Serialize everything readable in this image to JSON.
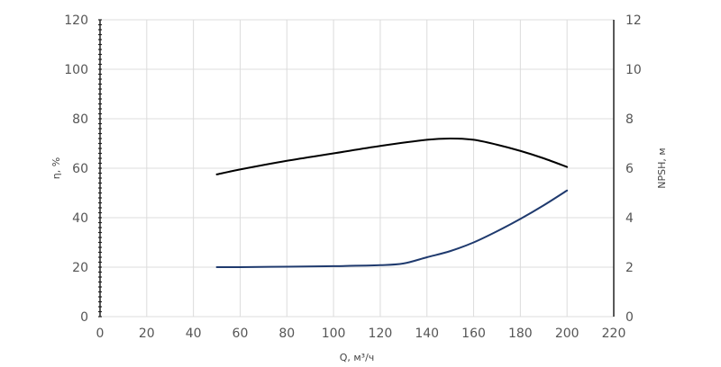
{
  "chart_data": {
    "type": "line",
    "xlabel": "Q, м³/ч",
    "ylabel_left": "η, %",
    "ylabel_right": "NPSH, м",
    "xlim": [
      0,
      220
    ],
    "ylim_left": [
      0,
      120
    ],
    "ylim_right": [
      0,
      12
    ],
    "x_ticks": [
      "0",
      "20",
      "40",
      "60",
      "80",
      "100",
      "120",
      "140",
      "160",
      "180",
      "200",
      "220"
    ],
    "y_left_ticks": [
      "0",
      "20",
      "40",
      "60",
      "80",
      "100",
      "120"
    ],
    "y_right_ticks": [
      "0",
      "2",
      "4",
      "6",
      "8",
      "10",
      "12"
    ],
    "grid": true,
    "series": [
      {
        "axis": "left",
        "color": "#000000",
        "x": [
          50,
          60,
          80,
          100,
          120,
          140,
          150,
          160,
          170,
          180,
          190,
          200
        ],
        "y": [
          57.5,
          59.5,
          63,
          66,
          69,
          71.5,
          72,
          71.5,
          69.5,
          67,
          64,
          60.5
        ]
      },
      {
        "axis": "right",
        "color": "#1f3a6e",
        "x": [
          50,
          60,
          80,
          100,
          120,
          130,
          140,
          150,
          160,
          170,
          180,
          190,
          200
        ],
        "y": [
          2.0,
          2.0,
          2.02,
          2.04,
          2.08,
          2.15,
          2.4,
          2.65,
          3.0,
          3.45,
          3.95,
          4.5,
          5.1
        ]
      }
    ]
  }
}
